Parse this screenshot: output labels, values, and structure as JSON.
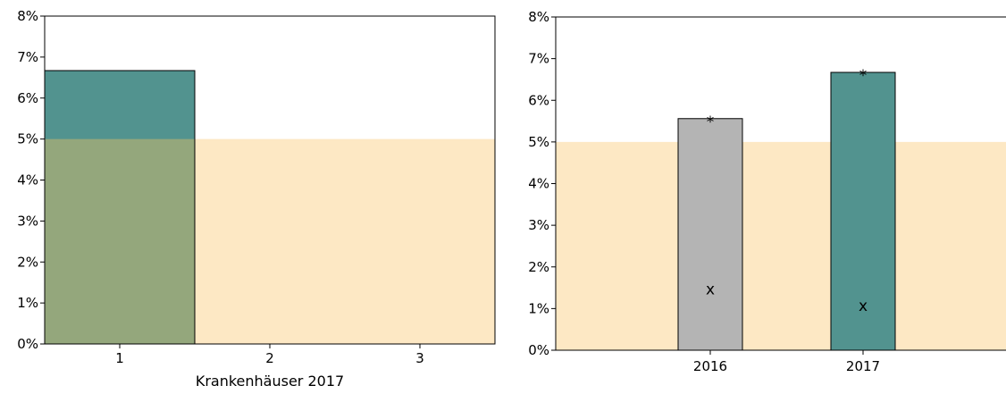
{
  "charts": [
    {
      "type": "bar",
      "xlabel": "Krankenhäuser 2017",
      "ylabel": "",
      "ylim": [
        0,
        8
      ],
      "y_tick_labels": [
        "0%",
        "1%",
        "2%",
        "3%",
        "4%",
        "5%",
        "6%",
        "7%",
        "8%"
      ],
      "categories": [
        "1",
        "2",
        "3"
      ],
      "values": [
        6.67,
        null,
        null
      ],
      "reference_band": {
        "from": 0,
        "to": 5
      },
      "colors": {
        "bar": "#52938F",
        "band": "#FDE8C4",
        "overlap": "#94A77C"
      }
    },
    {
      "type": "bar",
      "xlabel": "",
      "ylabel": "",
      "ylim": [
        0,
        8
      ],
      "y_tick_labels": [
        "0%",
        "1%",
        "2%",
        "3%",
        "4%",
        "5%",
        "6%",
        "7%",
        "8%"
      ],
      "categories": [
        "2016",
        "2017"
      ],
      "values": [
        5.56,
        6.67
      ],
      "upper_marker": "*",
      "lower_marker": "x",
      "lower_marker_values": [
        1.45,
        1.05
      ],
      "reference_band": {
        "from": 0,
        "to": 5
      },
      "colors": {
        "bars": [
          "#B4B4B4",
          "#52938F"
        ],
        "band": "#FDE8C4"
      }
    }
  ]
}
